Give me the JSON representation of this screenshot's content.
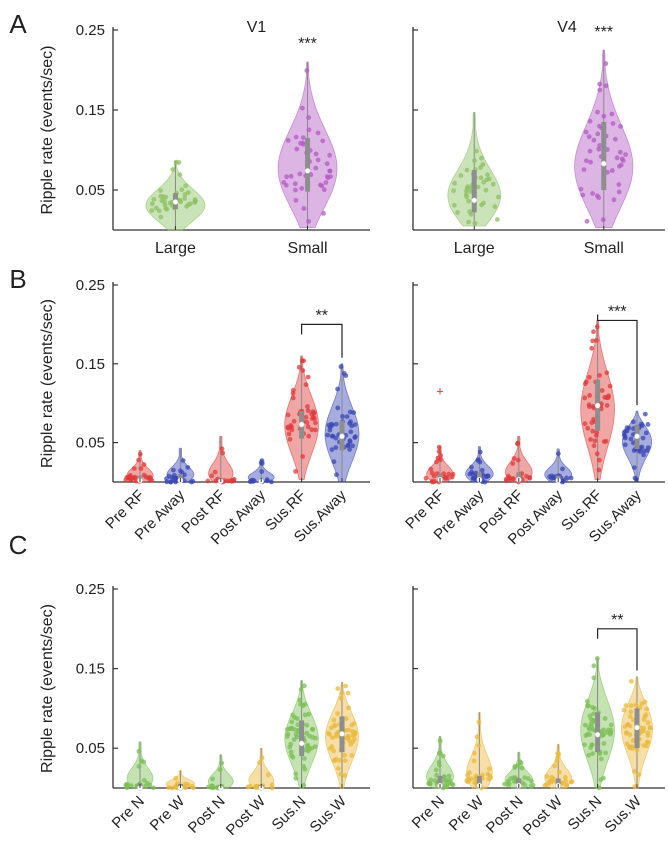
{
  "colors": {
    "large": "#8cc063",
    "small": "#b35bc4",
    "rf": "#e03a3a",
    "away": "#3a47b5",
    "n": "#7cbf55",
    "w": "#e9b93c"
  },
  "chart_data": [
    {
      "id": "A-V1",
      "panel": "A",
      "type": "violin",
      "title": "V1",
      "ylabel": "Ripple rate (events/sec)",
      "ylim": [
        0,
        0.25
      ],
      "yticks": [
        "0.05",
        "0.15",
        "0.25"
      ],
      "categories": [
        "Large",
        "Small"
      ],
      "tick_rotation": 0,
      "series": [
        {
          "name": "Large",
          "color": "large",
          "min": 0.0,
          "max": 0.086,
          "q1": 0.026,
          "median": 0.035,
          "q3": 0.046,
          "n": 40,
          "peak": 0.028
        },
        {
          "name": "Small",
          "color": "small",
          "min": 0.003,
          "max": 0.21,
          "q1": 0.048,
          "median": 0.074,
          "q3": 0.115,
          "n": 45,
          "peak": 0.07
        }
      ],
      "significance": [
        {
          "label": "***",
          "from": 1,
          "to": 1,
          "y": 0.222
        }
      ]
    },
    {
      "id": "A-V4",
      "panel": "",
      "type": "violin",
      "title": "V4",
      "ylabel": "",
      "ylim": [
        0,
        0.25
      ],
      "yticks": [],
      "categories": [
        "Large",
        "Small"
      ],
      "tick_rotation": 0,
      "series": [
        {
          "name": "Large",
          "color": "large",
          "min": 0.005,
          "max": 0.147,
          "q1": 0.022,
          "median": 0.037,
          "q3": 0.075,
          "n": 40,
          "peak": 0.03
        },
        {
          "name": "Small",
          "color": "small",
          "min": 0.003,
          "max": 0.225,
          "q1": 0.05,
          "median": 0.083,
          "q3": 0.135,
          "n": 45,
          "peak": 0.07
        }
      ],
      "significance": [
        {
          "label": "***",
          "from": 1,
          "to": 1,
          "y": 0.236
        }
      ]
    },
    {
      "id": "B-V1",
      "panel": "B",
      "type": "violin",
      "title": "",
      "ylabel": "Ripple rate (events/sec)",
      "ylim": [
        0,
        0.25
      ],
      "yticks": [
        "0.05",
        "0.15",
        "0.25"
      ],
      "categories": [
        "Pre RF",
        "Pre Away",
        "Post RF",
        "Post Away",
        "Sus.RF",
        "Sus.Away"
      ],
      "tick_rotation": -45,
      "series": [
        {
          "name": "Pre RF",
          "color": "rf",
          "min": 0.0,
          "max": 0.04,
          "q1": 0.0,
          "median": 0.002,
          "q3": 0.008,
          "n": 25,
          "peak": 0.003
        },
        {
          "name": "Pre Away",
          "color": "away",
          "min": 0.0,
          "max": 0.043,
          "q1": 0.0,
          "median": 0.002,
          "q3": 0.01,
          "n": 25,
          "peak": 0.004
        },
        {
          "name": "Post RF",
          "color": "rf",
          "min": 0.0,
          "max": 0.058,
          "q1": 0.0,
          "median": 0.001,
          "q3": 0.004,
          "n": 18,
          "peak": 0.002
        },
        {
          "name": "Post Away",
          "color": "away",
          "min": 0.0,
          "max": 0.028,
          "q1": 0.0,
          "median": 0.001,
          "q3": 0.003,
          "n": 14,
          "peak": 0.002
        },
        {
          "name": "Sus.RF",
          "color": "rf",
          "min": 0.003,
          "max": 0.16,
          "q1": 0.055,
          "median": 0.073,
          "q3": 0.09,
          "n": 45,
          "peak": 0.075
        },
        {
          "name": "Sus.Away",
          "color": "away",
          "min": 0.0,
          "max": 0.15,
          "q1": 0.04,
          "median": 0.058,
          "q3": 0.078,
          "n": 45,
          "peak": 0.06
        }
      ],
      "significance": [
        {
          "label": "**",
          "from": 4,
          "to": 5,
          "y": 0.2
        }
      ]
    },
    {
      "id": "B-V4",
      "panel": "",
      "type": "violin",
      "title": "",
      "ylabel": "",
      "ylim": [
        0,
        0.25
      ],
      "yticks": [],
      "categories": [
        "Pre RF",
        "Pre Away",
        "Post RF",
        "Post Away",
        "Sus.RF",
        "Sus.Away"
      ],
      "tick_rotation": -45,
      "series": [
        {
          "name": "Pre RF",
          "color": "rf",
          "min": 0.0,
          "max": 0.045,
          "q1": 0.0,
          "median": 0.003,
          "q3": 0.01,
          "n": 25,
          "peak": 0.004,
          "outlier": 0.115
        },
        {
          "name": "Pre Away",
          "color": "away",
          "min": 0.0,
          "max": 0.045,
          "q1": 0.0,
          "median": 0.003,
          "q3": 0.012,
          "n": 25,
          "peak": 0.005
        },
        {
          "name": "Post RF",
          "color": "rf",
          "min": 0.0,
          "max": 0.058,
          "q1": 0.0,
          "median": 0.003,
          "q3": 0.012,
          "n": 22,
          "peak": 0.005
        },
        {
          "name": "Post Away",
          "color": "away",
          "min": 0.0,
          "max": 0.042,
          "q1": 0.0,
          "median": 0.002,
          "q3": 0.008,
          "n": 18,
          "peak": 0.004
        },
        {
          "name": "Sus.RF",
          "color": "rf",
          "min": 0.003,
          "max": 0.205,
          "q1": 0.065,
          "median": 0.097,
          "q3": 0.13,
          "n": 45,
          "peak": 0.095
        },
        {
          "name": "Sus.Away",
          "color": "away",
          "min": 0.0,
          "max": 0.09,
          "q1": 0.042,
          "median": 0.058,
          "q3": 0.072,
          "n": 40,
          "peak": 0.06
        }
      ],
      "significance": [
        {
          "label": "***",
          "from": 4,
          "to": 5,
          "y": 0.205
        }
      ]
    },
    {
      "id": "C-V1",
      "panel": "C",
      "type": "violin",
      "title": "",
      "ylabel": "Ripple rate (events/sec)",
      "ylim": [
        0,
        0.25
      ],
      "yticks": [
        "0.05",
        "0.15",
        "0.25"
      ],
      "categories": [
        "Pre N",
        "Pre W",
        "Post N",
        "Post W",
        "Sus.N",
        "Sus.W"
      ],
      "tick_rotation": -45,
      "series": [
        {
          "name": "Pre N",
          "color": "n",
          "min": 0.0,
          "max": 0.058,
          "q1": 0.0,
          "median": 0.0,
          "q3": 0.006,
          "n": 20,
          "peak": 0.004
        },
        {
          "name": "Pre W",
          "color": "w",
          "min": 0.0,
          "max": 0.022,
          "q1": 0.0,
          "median": 0.0,
          "q3": 0.005,
          "n": 20,
          "peak": 0.003
        },
        {
          "name": "Post N",
          "color": "n",
          "min": 0.0,
          "max": 0.042,
          "q1": 0.0,
          "median": 0.0,
          "q3": 0.003,
          "n": 14,
          "peak": 0.002
        },
        {
          "name": "Post W",
          "color": "w",
          "min": 0.0,
          "max": 0.05,
          "q1": 0.0,
          "median": 0.0,
          "q3": 0.004,
          "n": 14,
          "peak": 0.002
        },
        {
          "name": "Sus.N",
          "color": "n",
          "min": 0.0,
          "max": 0.135,
          "q1": 0.04,
          "median": 0.056,
          "q3": 0.085,
          "n": 55,
          "peak": 0.065
        },
        {
          "name": "Sus.W",
          "color": "w",
          "min": 0.0,
          "max": 0.133,
          "q1": 0.045,
          "median": 0.068,
          "q3": 0.09,
          "n": 55,
          "peak": 0.07
        }
      ],
      "significance": []
    },
    {
      "id": "C-V4",
      "panel": "",
      "type": "violin",
      "title": "",
      "ylabel": "",
      "ylim": [
        0,
        0.25
      ],
      "yticks": [],
      "categories": [
        "Pre N",
        "Pre W",
        "Post N",
        "Post W",
        "Sus.N",
        "Sus.W"
      ],
      "tick_rotation": -45,
      "series": [
        {
          "name": "Pre N",
          "color": "n",
          "min": 0.0,
          "max": 0.065,
          "q1": 0.0,
          "median": 0.003,
          "q3": 0.015,
          "n": 30,
          "peak": 0.006
        },
        {
          "name": "Pre W",
          "color": "w",
          "min": 0.0,
          "max": 0.095,
          "q1": 0.0,
          "median": 0.003,
          "q3": 0.015,
          "n": 30,
          "peak": 0.006
        },
        {
          "name": "Post N",
          "color": "n",
          "min": 0.0,
          "max": 0.045,
          "q1": 0.0,
          "median": 0.003,
          "q3": 0.012,
          "n": 25,
          "peak": 0.005
        },
        {
          "name": "Post W",
          "color": "w",
          "min": 0.0,
          "max": 0.055,
          "q1": 0.0,
          "median": 0.003,
          "q3": 0.012,
          "n": 25,
          "peak": 0.005
        },
        {
          "name": "Sus.N",
          "color": "n",
          "min": 0.0,
          "max": 0.163,
          "q1": 0.045,
          "median": 0.067,
          "q3": 0.095,
          "n": 55,
          "peak": 0.075
        },
        {
          "name": "Sus.W",
          "color": "w",
          "min": 0.0,
          "max": 0.14,
          "q1": 0.05,
          "median": 0.076,
          "q3": 0.1,
          "n": 55,
          "peak": 0.085
        }
      ],
      "significance": [
        {
          "label": "**",
          "from": 4,
          "to": 5,
          "y": 0.2
        }
      ]
    }
  ]
}
